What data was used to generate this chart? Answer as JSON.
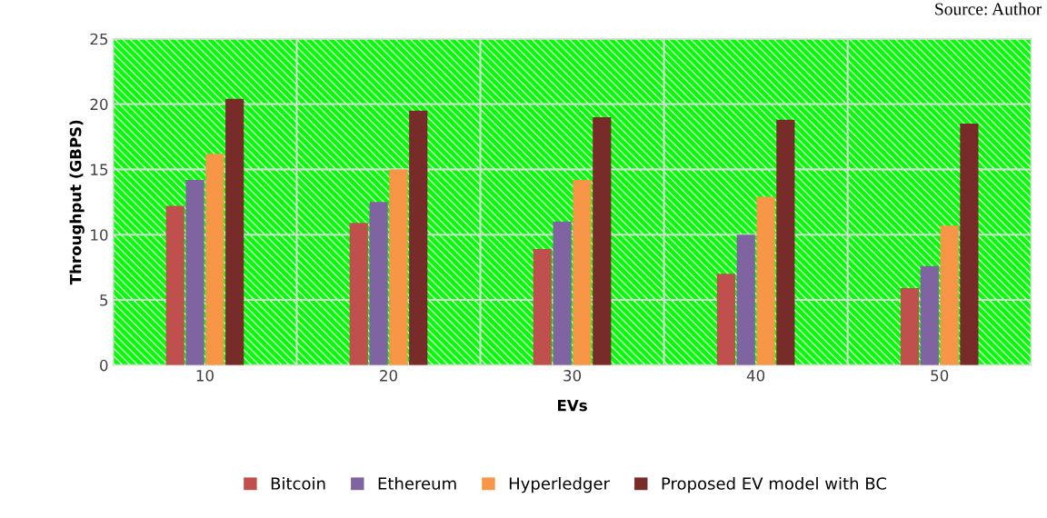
{
  "chart_data": {
    "type": "bar",
    "xlabel": "EVs",
    "ylabel": "Throughput (GBPS)",
    "annotations": [
      "Source: Author"
    ],
    "categories": [
      "10",
      "20",
      "30",
      "40",
      "50"
    ],
    "series": [
      {
        "name": "Bitcoin",
        "color": "#c0504d",
        "values": [
          12.2,
          10.9,
          8.9,
          7,
          5.9
        ]
      },
      {
        "name": "Ethereum",
        "color": "#8064a2",
        "values": [
          14.2,
          12.5,
          11,
          10,
          7.6
        ]
      },
      {
        "name": "Hyperledger",
        "color": "#f79646",
        "values": [
          16.2,
          15,
          14.2,
          12.9,
          10.7
        ]
      },
      {
        "name": "Proposed EV model with BC",
        "color": "#772c2a",
        "values": [
          20.4,
          19.5,
          19,
          18.8,
          18.5
        ]
      }
    ],
    "ylim": [
      0,
      25
    ],
    "yticks": [
      0,
      5,
      10,
      15,
      20,
      25
    ],
    "grid": true,
    "legend": "bottom"
  }
}
